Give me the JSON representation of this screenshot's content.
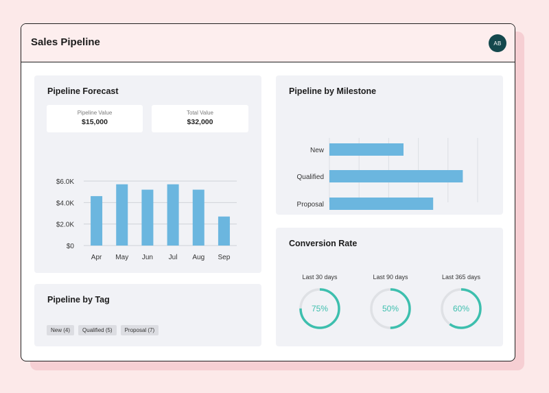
{
  "header": {
    "title": "Sales Pipeline",
    "avatar_initials": "AB"
  },
  "colors": {
    "bar": "#6bb6df",
    "ring": "#3dbfae",
    "ring_track": "#dfe1e5",
    "background": "#fce9e9",
    "avatar": "#14484d"
  },
  "forecast": {
    "title": "Pipeline Forecast",
    "stats": [
      {
        "label": "Pipeline Value",
        "value": "$15,000"
      },
      {
        "label": "Total Value",
        "value": "$32,000"
      }
    ],
    "chart_data": {
      "type": "bar",
      "categories": [
        "Apr",
        "May",
        "Jun",
        "Jul",
        "Aug",
        "Sep"
      ],
      "values": [
        4.6,
        5.7,
        5.2,
        5.7,
        5.2,
        2.7
      ],
      "ylim": [
        0,
        6
      ],
      "yticks": [
        0,
        2,
        4,
        6
      ],
      "ytick_labels": [
        "$0",
        "$2.0K",
        "$4.0K",
        "$6.0K"
      ],
      "grid": true
    }
  },
  "milestone": {
    "title": "Pipeline by Milestone",
    "chart_data": {
      "type": "bar",
      "orientation": "horizontal",
      "categories": [
        "New",
        "Qualified",
        "Proposal"
      ],
      "values": [
        5,
        9,
        7
      ],
      "xlim": [
        0,
        10
      ],
      "xticks": [
        0,
        2,
        4,
        6,
        8,
        10
      ],
      "grid": true
    }
  },
  "tag": {
    "title": "Pipeline by Tag",
    "tags": [
      "New (4)",
      "Qualified (5)",
      "Proposal (7)"
    ]
  },
  "conversion": {
    "title": "Conversion Rate",
    "rates": [
      {
        "label": "Last 30 days",
        "value": 75,
        "text": "75%"
      },
      {
        "label": "Last 90 days",
        "value": 50,
        "text": "50%"
      },
      {
        "label": "Last 365 days",
        "value": 60,
        "text": "60%"
      }
    ]
  }
}
